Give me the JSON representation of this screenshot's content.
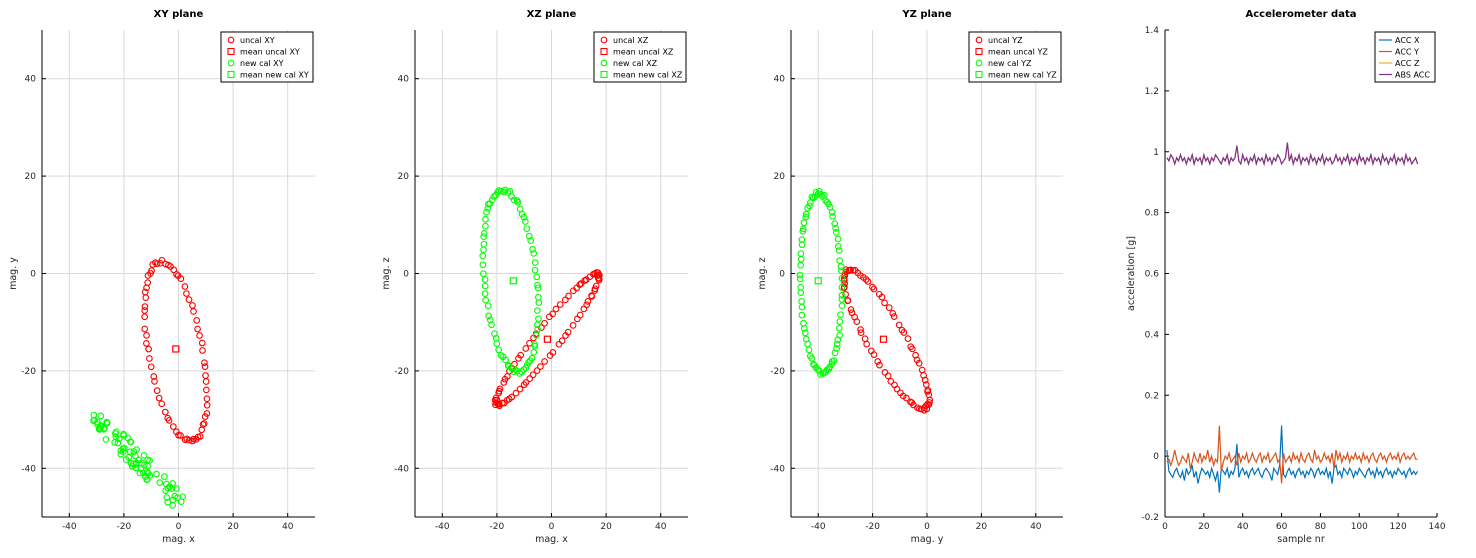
{
  "chart_data": [
    {
      "type": "scatter",
      "title": "XY plane",
      "xlabel": "mag. x",
      "ylabel": "mag. y",
      "xlim": [
        -50,
        50
      ],
      "ylim": [
        -50,
        50
      ],
      "xticks": [
        -40,
        -20,
        0,
        20,
        40
      ],
      "yticks": [
        -40,
        -20,
        0,
        20,
        40
      ],
      "grid": true,
      "legend_position": "top-right",
      "legend": [
        "uncal XY",
        "mean uncal XY",
        "new cal XY",
        "mean new cal XY"
      ],
      "series": [
        {
          "name": "uncal XY",
          "color": "#ff0000",
          "marker": "circle",
          "ellipse": {
            "cx": -1,
            "cy": -16,
            "rx": 19.5,
            "ry": 9.5,
            "angle": -68
          },
          "n": 70
        },
        {
          "name": "mean uncal XY",
          "color": "#ff0000",
          "marker": "square",
          "points": [
            [
              -1,
              -15.5
            ]
          ]
        },
        {
          "name": "new cal XY",
          "color": "#00ff00",
          "marker": "circle",
          "band": {
            "x0": -31,
            "y0": -29,
            "x1": 2,
            "y1": -48,
            "w": 2.2
          },
          "n": 80
        },
        {
          "name": "mean new cal XY",
          "color": "#00ff00",
          "marker": "square",
          "points": []
        }
      ]
    },
    {
      "type": "scatter",
      "title": "XZ plane",
      "xlabel": "mag. x",
      "ylabel": "mag. z",
      "xlim": [
        -50,
        50
      ],
      "ylim": [
        -50,
        50
      ],
      "xticks": [
        -40,
        -20,
        0,
        20,
        40
      ],
      "yticks": [
        -40,
        -20,
        0,
        20,
        40
      ],
      "grid": true,
      "legend_position": "top-right",
      "legend": [
        "uncal XZ",
        "mean uncal XZ",
        "new cal XZ",
        "mean new cal XZ"
      ],
      "series": [
        {
          "name": "uncal XZ",
          "color": "#ff0000",
          "marker": "circle",
          "ellipse": {
            "cx": -1.5,
            "cy": -13.5,
            "rx": 23,
            "ry": 3.3,
            "angle": 35
          },
          "n": 80
        },
        {
          "name": "mean uncal XZ",
          "color": "#ff0000",
          "marker": "square",
          "points": [
            [
              -1.5,
              -13.5
            ]
          ]
        },
        {
          "name": "new cal XZ",
          "color": "#00ff00",
          "marker": "circle",
          "ellipse": {
            "cx": -15,
            "cy": -1.5,
            "rx": 19,
            "ry": 9.5,
            "angle": -78
          },
          "n": 80
        },
        {
          "name": "mean new cal XZ",
          "color": "#00ff00",
          "marker": "square",
          "points": [
            [
              -14,
              -1.5
            ]
          ]
        }
      ]
    },
    {
      "type": "scatter",
      "title": "YZ plane",
      "xlabel": "mag. y",
      "ylabel": "mag. z",
      "xlim": [
        -50,
        50
      ],
      "ylim": [
        -50,
        50
      ],
      "xticks": [
        -40,
        -20,
        0,
        20,
        40
      ],
      "yticks": [
        -40,
        -20,
        0,
        20,
        40
      ],
      "grid": true,
      "legend_position": "top-right",
      "legend": [
        "uncal YZ",
        "mean uncal YZ",
        "new cal YZ",
        "mean new cal YZ"
      ],
      "series": [
        {
          "name": "uncal YZ",
          "color": "#ff0000",
          "marker": "circle",
          "ellipse": {
            "cx": -15,
            "cy": -13.5,
            "rx": 20.5,
            "ry": 5.5,
            "angle": -42
          },
          "n": 80
        },
        {
          "name": "mean uncal YZ",
          "color": "#ff0000",
          "marker": "square",
          "points": [
            [
              -16,
              -13.5
            ]
          ]
        },
        {
          "name": "new cal YZ",
          "color": "#00ff00",
          "marker": "circle",
          "ellipse": {
            "cx": -39,
            "cy": -2,
            "rx": 18.5,
            "ry": 7.5,
            "angle": -87
          },
          "n": 80
        },
        {
          "name": "mean new cal YZ",
          "color": "#00ff00",
          "marker": "square",
          "points": [
            [
              -40,
              -1.5
            ]
          ]
        }
      ]
    },
    {
      "type": "line",
      "title": "Accelerometer data",
      "xlabel": "sample nr",
      "ylabel": "acceleration [g]",
      "xlim": [
        0,
        140
      ],
      "ylim": [
        -0.2,
        1.4
      ],
      "xticks": [
        0,
        20,
        40,
        60,
        80,
        100,
        120,
        140
      ],
      "yticks": [
        -0.2,
        0,
        0.2,
        0.4,
        0.6,
        0.8,
        1,
        1.2,
        1.4
      ],
      "grid": false,
      "legend_position": "top-right",
      "legend": [
        "ACC X",
        "ACC Y",
        "ACC Z",
        "ABS ACC"
      ],
      "x": [
        1,
        2,
        3,
        4,
        5,
        6,
        7,
        8,
        9,
        10,
        11,
        12,
        13,
        14,
        15,
        16,
        17,
        18,
        19,
        20,
        21,
        22,
        23,
        24,
        25,
        26,
        27,
        28,
        29,
        30,
        31,
        32,
        33,
        34,
        35,
        36,
        37,
        38,
        39,
        40,
        41,
        42,
        43,
        44,
        45,
        46,
        47,
        48,
        49,
        50,
        51,
        52,
        53,
        54,
        55,
        56,
        57,
        58,
        59,
        60,
        61,
        62,
        63,
        64,
        65,
        66,
        67,
        68,
        69,
        70,
        71,
        72,
        73,
        74,
        75,
        76,
        77,
        78,
        79,
        80,
        81,
        82,
        83,
        84,
        85,
        86,
        87,
        88,
        89,
        90,
        91,
        92,
        93,
        94,
        95,
        96,
        97,
        98,
        99,
        100,
        101,
        102,
        103,
        104,
        105,
        106,
        107,
        108,
        109,
        110,
        111,
        112,
        113,
        114,
        115,
        116,
        117,
        118,
        119,
        120,
        121,
        122,
        123,
        124,
        125,
        126,
        127,
        128,
        129,
        130
      ],
      "series": [
        {
          "name": "ACC X",
          "color": "#0072bd",
          "values": [
            0.02,
            -0.05,
            -0.06,
            -0.07,
            -0.05,
            -0.04,
            -0.06,
            -0.07,
            -0.05,
            -0.08,
            -0.04,
            -0.06,
            -0.05,
            -0.03,
            -0.07,
            -0.05,
            -0.09,
            -0.06,
            -0.04,
            -0.05,
            -0.06,
            -0.05,
            -0.07,
            -0.04,
            -0.06,
            -0.08,
            -0.05,
            -0.12,
            -0.04,
            -0.05,
            -0.06,
            -0.04,
            -0.07,
            -0.05,
            -0.06,
            -0.04,
            0.04,
            -0.07,
            -0.05,
            -0.04,
            -0.06,
            -0.05,
            -0.07,
            -0.05,
            -0.04,
            -0.06,
            -0.05,
            -0.04,
            -0.06,
            -0.07,
            -0.05,
            -0.04,
            -0.05,
            -0.06,
            -0.08,
            -0.04,
            -0.05,
            -0.06,
            -0.03,
            0.1,
            -0.06,
            -0.07,
            -0.05,
            -0.04,
            -0.06,
            -0.05,
            -0.07,
            -0.05,
            -0.04,
            -0.06,
            -0.05,
            -0.07,
            -0.05,
            -0.06,
            -0.04,
            -0.05,
            -0.07,
            -0.05,
            -0.04,
            -0.06,
            -0.05,
            -0.06,
            -0.04,
            -0.07,
            -0.05,
            -0.09,
            -0.04,
            -0.03,
            -0.06,
            -0.05,
            -0.07,
            -0.04,
            -0.05,
            -0.06,
            -0.04,
            -0.05,
            -0.07,
            -0.05,
            -0.06,
            -0.04,
            -0.05,
            -0.06,
            -0.07,
            -0.05,
            -0.04,
            -0.06,
            -0.05,
            -0.07,
            -0.04,
            -0.06,
            -0.05,
            -0.07,
            -0.05,
            -0.04,
            -0.06,
            -0.05,
            -0.07,
            -0.05,
            -0.06,
            -0.04,
            -0.05,
            -0.06,
            -0.05,
            -0.07,
            -0.05,
            -0.04,
            -0.06,
            -0.05,
            -0.06,
            -0.05
          ]
        },
        {
          "name": "ACC Y",
          "color": "#d95319",
          "values": [
            -0.02,
            -0.01,
            -0.03,
            -0.01,
            0.02,
            -0.01,
            -0.03,
            -0.02,
            0,
            -0.01,
            -0.02,
            0.01,
            -0.04,
            -0.02,
            0.01,
            -0.01,
            -0.02,
            0.01,
            -0.02,
            0,
            -0.01,
            0.02,
            -0.02,
            0,
            -0.03,
            -0.01,
            -0.02,
            0.1,
            -0.05,
            -0.02,
            0,
            -0.01,
            0.01,
            -0.02,
            -0.01,
            0,
            -0.03,
            0.01,
            -0.02,
            0,
            -0.01,
            0.01,
            -0.02,
            -0.01,
            0.01,
            -0.01,
            -0.02,
            0,
            0.01,
            -0.02,
            0,
            -0.01,
            0.01,
            -0.02,
            -0.01,
            0,
            0.01,
            -0.02,
            -0.01,
            -0.09,
            0.01,
            -0.02,
            -0.01,
            0,
            -0.02,
            0.01,
            -0.01,
            0,
            -0.02,
            0.01,
            -0.01,
            -0.02,
            0,
            0.01,
            -0.01,
            -0.02,
            0.02,
            -0.01,
            0,
            -0.02,
            -0.01,
            0.01,
            -0.01,
            0,
            -0.02,
            0.01,
            -0.04,
            0.02,
            -0.01,
            0.01,
            -0.02,
            0,
            -0.01,
            0.01,
            -0.02,
            0,
            -0.01,
            0.01,
            -0.01,
            0,
            -0.02,
            0.01,
            -0.01,
            0,
            -0.02,
            0,
            0.01,
            -0.01,
            -0.02,
            0,
            0.01,
            -0.01,
            0,
            -0.02,
            0,
            0.01,
            -0.01,
            0,
            -0.01,
            0.01,
            -0.02,
            0,
            0.01,
            -0.01,
            0,
            -0.01,
            0,
            0.01,
            -0.01,
            -0.01
          ]
        },
        {
          "name": "ACC Z",
          "color": "#edb120",
          "values": [
            0.98,
            0.97,
            0.99,
            0.98,
            0.96,
            0.98,
            0.97,
            0.99,
            0.97,
            0.98,
            0.96,
            0.98,
            0.97,
            0.99,
            0.96,
            0.98,
            0.97,
            0.98,
            0.96,
            0.99,
            0.97,
            0.98,
            0.96,
            0.98,
            0.97,
            0.99,
            0.98,
            0.97,
            0.96,
            0.98,
            0.97,
            0.99,
            0.96,
            0.98,
            0.97,
            0.98,
            1.02,
            0.97,
            0.96,
            0.99,
            0.97,
            0.98,
            0.96,
            0.98,
            0.97,
            0.99,
            0.96,
            0.98,
            0.97,
            0.98,
            0.96,
            0.99,
            0.97,
            0.98,
            0.96,
            0.98,
            0.97,
            0.99,
            0.98,
            0.96,
            0.97,
            0.98,
            1.03,
            0.97,
            0.99,
            0.96,
            0.98,
            0.97,
            0.99,
            0.96,
            0.98,
            0.97,
            0.98,
            0.96,
            0.99,
            0.97,
            0.98,
            0.96,
            0.98,
            0.97,
            0.99,
            0.96,
            0.98,
            0.97,
            0.98,
            0.96,
            0.97,
            0.99,
            0.97,
            0.98,
            0.96,
            0.98,
            0.97,
            0.99,
            0.96,
            0.98,
            0.97,
            0.98,
            0.96,
            0.99,
            0.97,
            0.98,
            0.96,
            0.98,
            0.97,
            0.99,
            0.96,
            0.98,
            0.97,
            0.98,
            0.96,
            0.99,
            0.97,
            0.98,
            0.96,
            0.98,
            0.97,
            0.99,
            0.96,
            0.98,
            0.97,
            0.98,
            0.96,
            0.99,
            0.97,
            0.98,
            0.96,
            0.97,
            0.98,
            0.96
          ]
        },
        {
          "name": "ABS ACC",
          "color": "#7e2f8e",
          "values": [
            0.98,
            0.97,
            0.99,
            0.98,
            0.96,
            0.98,
            0.97,
            0.99,
            0.97,
            0.98,
            0.96,
            0.98,
            0.97,
            0.99,
            0.96,
            0.98,
            0.97,
            0.98,
            0.96,
            0.99,
            0.97,
            0.98,
            0.96,
            0.98,
            0.97,
            0.99,
            0.98,
            0.97,
            0.96,
            0.98,
            0.97,
            0.99,
            0.96,
            0.98,
            0.97,
            0.98,
            1.02,
            0.97,
            0.96,
            0.99,
            0.97,
            0.98,
            0.96,
            0.98,
            0.97,
            0.99,
            0.96,
            0.98,
            0.97,
            0.98,
            0.96,
            0.99,
            0.97,
            0.98,
            0.96,
            0.98,
            0.97,
            0.99,
            0.98,
            0.96,
            0.97,
            0.98,
            1.03,
            0.97,
            0.99,
            0.96,
            0.98,
            0.97,
            0.99,
            0.96,
            0.98,
            0.97,
            0.98,
            0.96,
            0.99,
            0.97,
            0.98,
            0.96,
            0.98,
            0.97,
            0.99,
            0.96,
            0.98,
            0.97,
            0.98,
            0.96,
            0.97,
            0.99,
            0.97,
            0.98,
            0.96,
            0.98,
            0.97,
            0.99,
            0.96,
            0.98,
            0.97,
            0.98,
            0.96,
            0.99,
            0.97,
            0.98,
            0.96,
            0.98,
            0.97,
            0.99,
            0.96,
            0.98,
            0.97,
            0.98,
            0.96,
            0.99,
            0.97,
            0.98,
            0.96,
            0.98,
            0.97,
            0.99,
            0.96,
            0.98,
            0.97,
            0.98,
            0.96,
            0.99,
            0.97,
            0.98,
            0.96,
            0.97,
            0.98,
            0.96
          ]
        }
      ]
    }
  ]
}
